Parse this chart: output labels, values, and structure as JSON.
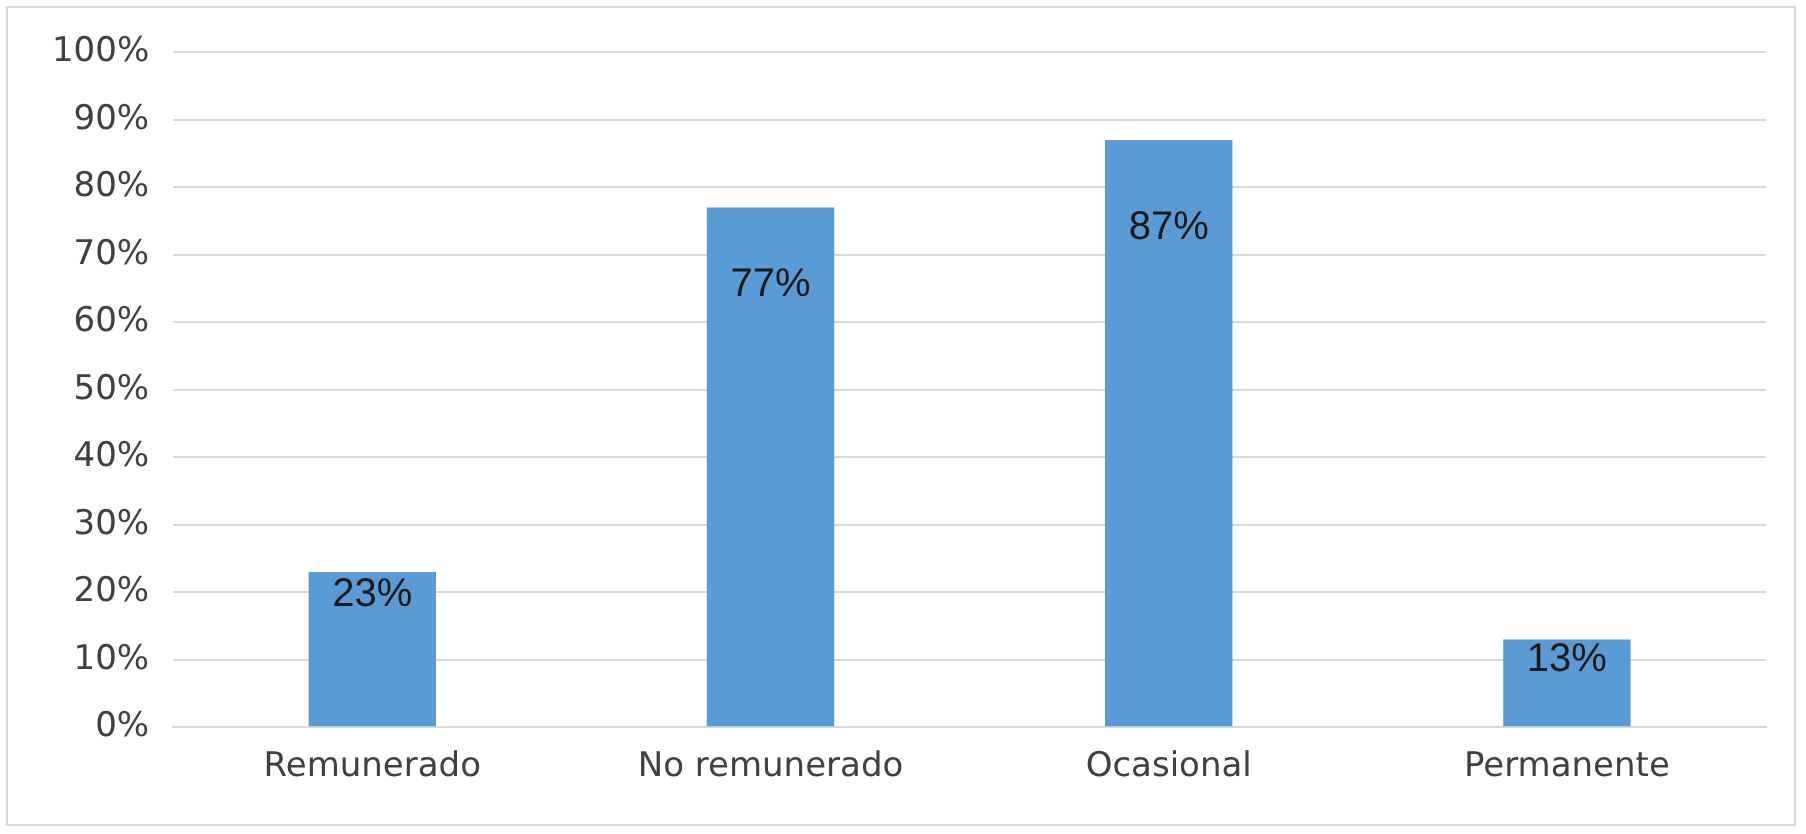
{
  "chart_data": {
    "type": "bar",
    "categories": [
      "Remunerado",
      "No remunerado",
      "Ocasional",
      "Permanente"
    ],
    "values": [
      23,
      77,
      87,
      13
    ],
    "value_labels": [
      "23%",
      "77%",
      "87%",
      "13%"
    ],
    "color": "#5b9bd5",
    "ylim": [
      0,
      100
    ],
    "yticks": [
      {
        "value": 0,
        "label": "0%"
      },
      {
        "value": 10,
        "label": "10%"
      },
      {
        "value": 20,
        "label": "20%"
      },
      {
        "value": 30,
        "label": "30%"
      },
      {
        "value": 40,
        "label": "40%"
      },
      {
        "value": 50,
        "label": "50%"
      },
      {
        "value": 60,
        "label": "60%"
      },
      {
        "value": 70,
        "label": "70%"
      },
      {
        "value": 80,
        "label": "80%"
      },
      {
        "value": 90,
        "label": "90%"
      },
      {
        "value": 100,
        "label": "100%"
      }
    ],
    "grid": "y",
    "legend": false
  }
}
